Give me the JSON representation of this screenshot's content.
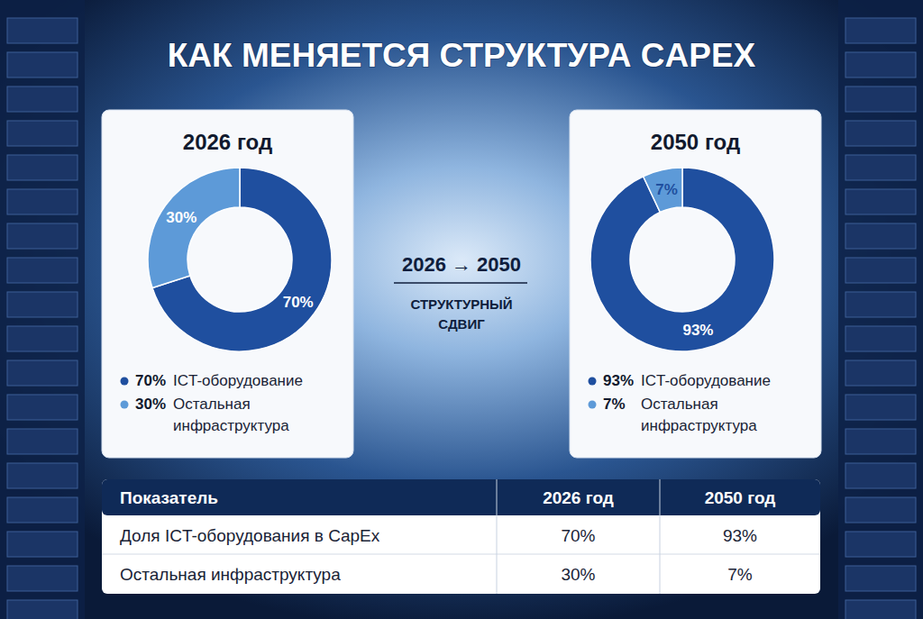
{
  "title": "КАК МЕНЯЕТСЯ СТРУКТУРА CAPEX",
  "transition": {
    "label": "2026 → 2050",
    "caption": [
      "СТРУКТУРНЫЙ",
      "СДВИГ"
    ]
  },
  "chart_data": [
    {
      "type": "donut",
      "title": "2026 год",
      "categories": [
        "ICT-оборудование",
        "Остальная инфраструктура"
      ],
      "values": [
        70,
        30
      ],
      "value_labels": [
        "70%",
        "30%"
      ],
      "colors": [
        "#1f4f9f",
        "#5d9ad8"
      ],
      "data_labels": true,
      "legend": "bottom"
    },
    {
      "type": "donut",
      "title": "2050 год",
      "categories": [
        "ICT-оборудование",
        "Остальная инфраструктура"
      ],
      "values": [
        93,
        7
      ],
      "value_labels": [
        "93%",
        "7%"
      ],
      "colors": [
        "#1f4f9f",
        "#5d9ad8"
      ],
      "data_labels": true,
      "legend": "bottom"
    }
  ],
  "table": {
    "header": [
      "Показатель",
      "2026 год",
      "2050 год"
    ],
    "rows": [
      [
        "Доля ICT-оборудования в CapEx",
        "70%",
        "93%"
      ],
      [
        "Остальная инфраструктура",
        "30%",
        "7%"
      ]
    ]
  }
}
